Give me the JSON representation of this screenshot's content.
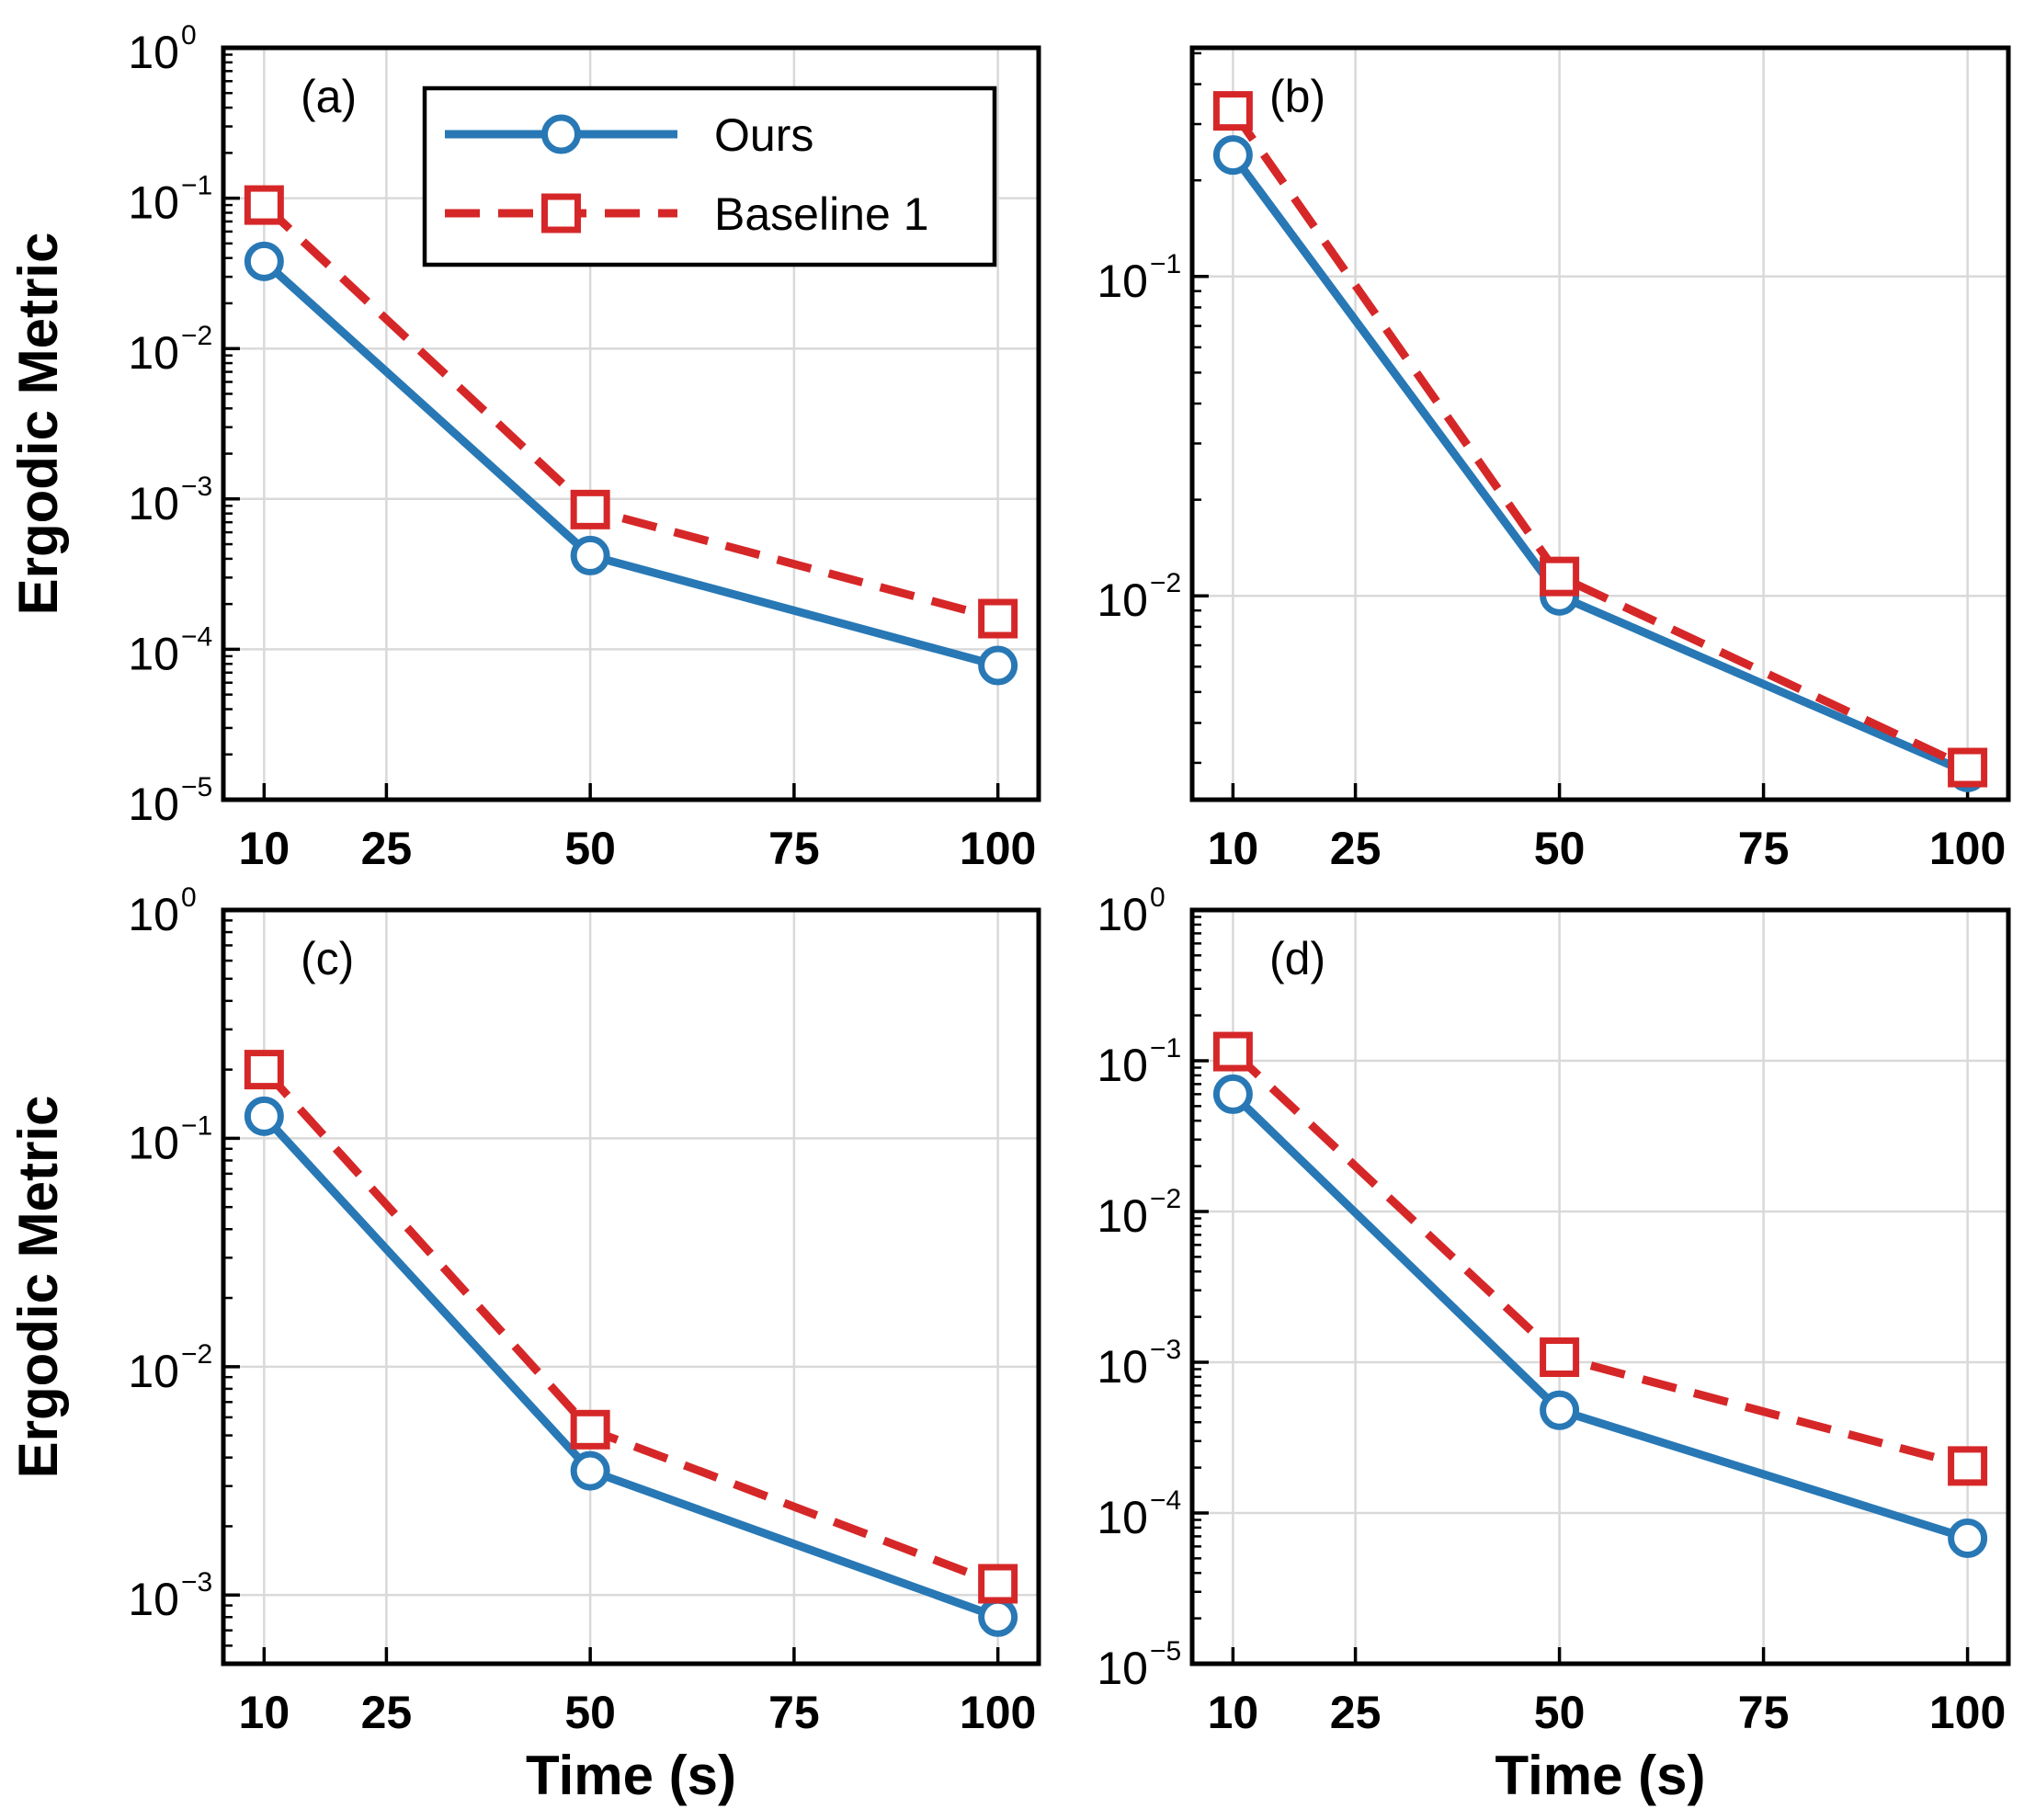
{
  "colors": {
    "ours": "#2878b5",
    "baseline": "#d62728",
    "grid": "#d9d9d9",
    "axis": "#000000"
  },
  "legend": {
    "entries": [
      {
        "label": "Ours",
        "marker": "circle",
        "line": "solid",
        "color": "#2878b5"
      },
      {
        "label": "Baseline 1",
        "marker": "square",
        "line": "dashed",
        "color": "#d62728"
      }
    ],
    "placement": "top-right of panel (a)"
  },
  "chart_data": [
    {
      "type": "line",
      "panel_label": "(a)",
      "xlabel": "",
      "ylabel": "Ergodic Metric",
      "x": [
        10,
        50,
        100
      ],
      "xticks": [
        10,
        25,
        50,
        75,
        100
      ],
      "xlim": [
        5,
        105
      ],
      "yscale": "log",
      "ylim": [
        1e-05,
        1
      ],
      "yticks": [
        {
          "base": "10",
          "exp": "0",
          "value": 1
        },
        {
          "base": "10",
          "exp": "−1",
          "value": 0.1
        },
        {
          "base": "10",
          "exp": "−2",
          "value": 0.01
        },
        {
          "base": "10",
          "exp": "−3",
          "value": 0.001
        },
        {
          "base": "10",
          "exp": "−4",
          "value": 0.0001
        },
        {
          "base": "10",
          "exp": "−5",
          "value": 1e-05
        }
      ],
      "grid": true,
      "series": [
        {
          "name": "Ours",
          "values": [
            0.038,
            0.00042,
            7.8e-05
          ]
        },
        {
          "name": "Baseline 1",
          "values": [
            0.09,
            0.00085,
            0.00016
          ]
        }
      ]
    },
    {
      "type": "line",
      "panel_label": "(b)",
      "xlabel": "",
      "ylabel": "",
      "x": [
        10,
        50,
        100
      ],
      "xticks": [
        10,
        25,
        50,
        75,
        100
      ],
      "xlim": [
        5,
        105
      ],
      "yscale": "log",
      "ylim": [
        0.0023,
        0.52
      ],
      "yticks": [
        {
          "base": "10",
          "exp": "−1",
          "value": 0.1
        },
        {
          "base": "10",
          "exp": "−2",
          "value": 0.01
        }
      ],
      "grid": true,
      "series": [
        {
          "name": "Ours",
          "values": [
            0.24,
            0.01,
            0.0028
          ]
        },
        {
          "name": "Baseline 1",
          "values": [
            0.33,
            0.0115,
            0.0029
          ]
        }
      ]
    },
    {
      "type": "line",
      "panel_label": "(c)",
      "xlabel": "Time (s)",
      "ylabel": "Ergodic Metric",
      "x": [
        10,
        50,
        100
      ],
      "xticks": [
        10,
        25,
        50,
        75,
        100
      ],
      "xlim": [
        5,
        105
      ],
      "yscale": "log",
      "ylim": [
        0.0005,
        1
      ],
      "yticks": [
        {
          "base": "10",
          "exp": "0",
          "value": 1
        },
        {
          "base": "10",
          "exp": "−1",
          "value": 0.1
        },
        {
          "base": "10",
          "exp": "−2",
          "value": 0.01
        },
        {
          "base": "10",
          "exp": "−3",
          "value": 0.001
        }
      ],
      "grid": true,
      "series": [
        {
          "name": "Ours",
          "values": [
            0.125,
            0.0035,
            0.0008
          ]
        },
        {
          "name": "Baseline 1",
          "values": [
            0.2,
            0.0053,
            0.00112
          ]
        }
      ]
    },
    {
      "type": "line",
      "panel_label": "(d)",
      "xlabel": "Time (s)",
      "ylabel": "",
      "x": [
        10,
        50,
        100
      ],
      "xticks": [
        10,
        25,
        50,
        75,
        100
      ],
      "xlim": [
        5,
        105
      ],
      "yscale": "log",
      "ylim": [
        1e-05,
        1
      ],
      "yticks": [
        {
          "base": "10",
          "exp": "0",
          "value": 1
        },
        {
          "base": "10",
          "exp": "−1",
          "value": 0.1
        },
        {
          "base": "10",
          "exp": "−2",
          "value": 0.01
        },
        {
          "base": "10",
          "exp": "−3",
          "value": 0.001
        },
        {
          "base": "10",
          "exp": "−4",
          "value": 0.0001
        },
        {
          "base": "10",
          "exp": "−5",
          "value": 1e-05
        }
      ],
      "grid": true,
      "series": [
        {
          "name": "Ours",
          "values": [
            0.06,
            0.00048,
            6.8e-05
          ]
        },
        {
          "name": "Baseline 1",
          "values": [
            0.115,
            0.00108,
            0.000205
          ]
        }
      ]
    }
  ]
}
